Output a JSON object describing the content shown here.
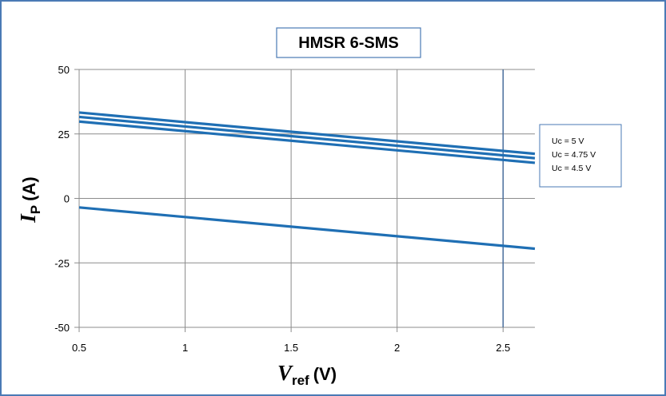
{
  "chart_data": {
    "type": "line",
    "title": "HMSR 6-SMS",
    "xlabel": {
      "symbol": "V",
      "subscript": "ref",
      "unit": "(V)"
    },
    "ylabel": {
      "symbol": "I",
      "subscript": "P",
      "unit": "(A)"
    },
    "xlim": [
      0.5,
      2.65
    ],
    "ylim": [
      -50,
      50
    ],
    "x_ticks": [
      "0.5",
      "1",
      "1.5",
      "2",
      "2.5"
    ],
    "y_ticks": [
      "50",
      "25",
      "0",
      "-25",
      "-50"
    ],
    "grid": true,
    "reference_line_x": 2.5,
    "legend": {
      "placement": "right",
      "entries": [
        "Uc = 5 V",
        "Uc = 4.75 V",
        "Uc = 4.5 V"
      ]
    },
    "series": [
      {
        "name": "Uc = 5 V",
        "x": [
          0.5,
          2.65
        ],
        "y": [
          33.3,
          17.3
        ]
      },
      {
        "name": "Uc = 4.75 V",
        "x": [
          0.5,
          2.65
        ],
        "y": [
          31.6,
          15.6
        ]
      },
      {
        "name": "Uc = 4.5 V",
        "x": [
          0.5,
          2.65
        ],
        "y": [
          29.8,
          13.8
        ]
      },
      {
        "x": [
          0.5,
          2.65
        ],
        "y": [
          -3.5,
          -19.5
        ]
      }
    ],
    "colors": {
      "series": "#1f6fb4",
      "frame": "#4a7ab5"
    }
  }
}
